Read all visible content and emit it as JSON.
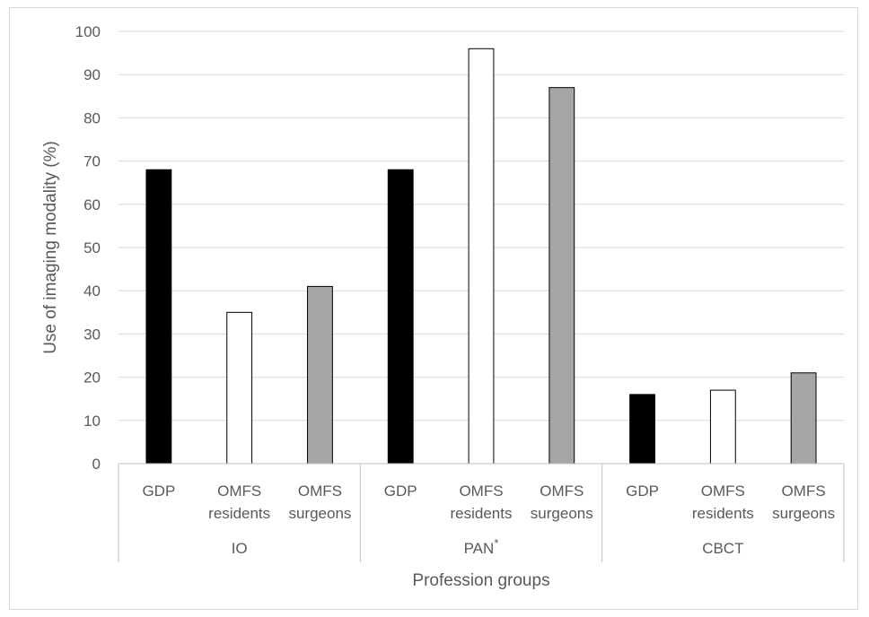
{
  "chart_data": {
    "type": "bar",
    "ylabel": "Use of imaging modality (%)",
    "xlabel": "Profession groups",
    "ylim": [
      0,
      100
    ],
    "ytick_step": 10,
    "grid": true,
    "groups": [
      {
        "label": "IO",
        "superscript": "",
        "categories": [
          {
            "label": [
              "GDP"
            ],
            "value": 68,
            "color": "#000000"
          },
          {
            "label": [
              "OMFS",
              "residents"
            ],
            "value": 35,
            "color": "#ffffff"
          },
          {
            "label": [
              "OMFS",
              "surgeons"
            ],
            "value": 41,
            "color": "#a6a6a6"
          }
        ]
      },
      {
        "label": "PAN",
        "superscript": "*",
        "categories": [
          {
            "label": [
              "GDP"
            ],
            "value": 68,
            "color": "#000000"
          },
          {
            "label": [
              "OMFS",
              "residents"
            ],
            "value": 96,
            "color": "#ffffff"
          },
          {
            "label": [
              "OMFS",
              "surgeons"
            ],
            "value": 87,
            "color": "#a6a6a6"
          }
        ]
      },
      {
        "label": "CBCT",
        "superscript": "",
        "categories": [
          {
            "label": [
              "GDP"
            ],
            "value": 16,
            "color": "#000000"
          },
          {
            "label": [
              "OMFS",
              "residents"
            ],
            "value": 17,
            "color": "#ffffff"
          },
          {
            "label": [
              "OMFS",
              "surgeons"
            ],
            "value": 21,
            "color": "#a6a6a6"
          }
        ]
      }
    ]
  }
}
